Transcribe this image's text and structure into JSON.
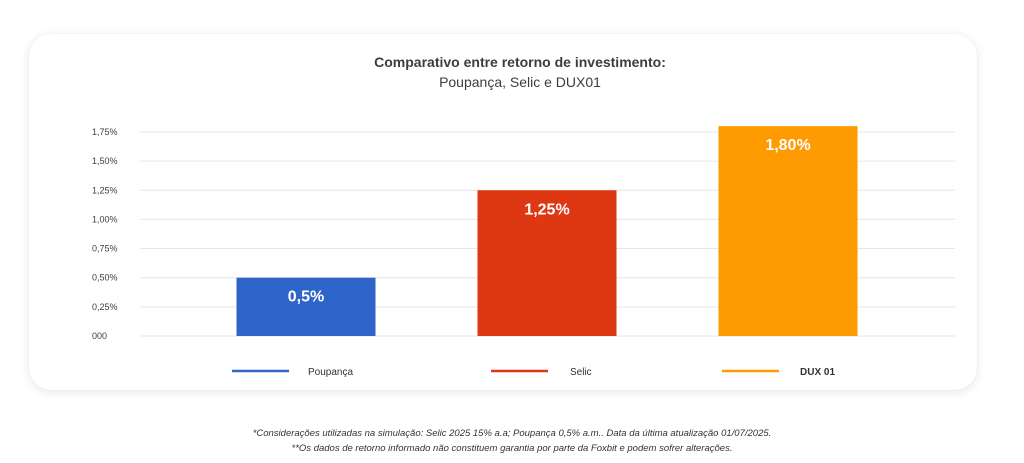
{
  "colors": {
    "poupanca": "#2f64c9",
    "selic": "#de3813",
    "dux": "#fe9a02",
    "grid": "#e6e6e6",
    "text": "#3d3d3d"
  },
  "chart_data": {
    "type": "bar",
    "title": "Comparativo entre retorno de investimento:",
    "subtitle": "Poupança, Selic e DUX01",
    "categories": [
      "Poupança",
      "Selic",
      "DUX 01"
    ],
    "values": [
      0.5,
      1.25,
      1.8
    ],
    "data_labels": [
      "0,5%",
      "1,25%",
      "1,80%"
    ],
    "legend": [
      "Poupança",
      "Selic",
      "DUX 01"
    ],
    "yticks": [
      {
        "value": 0,
        "label": "000"
      },
      {
        "value": 0.25,
        "label": "0,25%"
      },
      {
        "value": 0.5,
        "label": "0,50%"
      },
      {
        "value": 0.75,
        "label": "0,75%"
      },
      {
        "value": 1.0,
        "label": "1,00%"
      },
      {
        "value": 1.25,
        "label": "1,25%"
      },
      {
        "value": 1.5,
        "label": "1,50%"
      },
      {
        "value": 1.75,
        "label": "1,75%"
      }
    ],
    "ylim": [
      0,
      1.75
    ],
    "grid": true,
    "legend_position": "bottom"
  },
  "footnotes": [
    "*Considerações utilizadas na simulação: Selic 2025 15% a.a; Poupança 0,5% a.m.. Data da última atualização 01/07/2025.",
    "**Os dados de retorno informado não constituem garantia por parte da Foxbit e podem sofrer alterações."
  ]
}
